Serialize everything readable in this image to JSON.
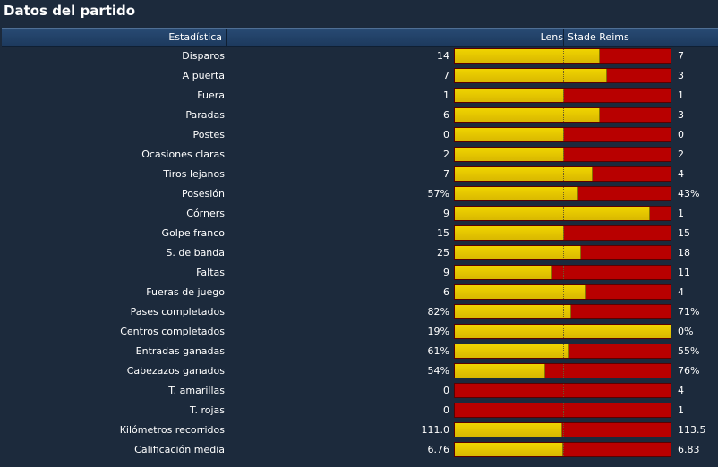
{
  "title": "Datos del partido",
  "header": {
    "stat": "Estadística",
    "home": "Lens",
    "away": "Stade Reims"
  },
  "colors": {
    "home": "#e6c800",
    "away": "#b80000",
    "background": "#1c2a3c"
  },
  "rows": [
    {
      "label": "Disparos",
      "home": "14",
      "away": "7",
      "home_share": 0.667
    },
    {
      "label": "A puerta",
      "home": "7",
      "away": "3",
      "home_share": 0.7
    },
    {
      "label": "Fuera",
      "home": "1",
      "away": "1",
      "home_share": 0.5
    },
    {
      "label": "Paradas",
      "home": "6",
      "away": "3",
      "home_share": 0.667
    },
    {
      "label": "Postes",
      "home": "0",
      "away": "0",
      "home_share": 0.5
    },
    {
      "label": "Ocasiones claras",
      "home": "2",
      "away": "2",
      "home_share": 0.5
    },
    {
      "label": "Tiros lejanos",
      "home": "7",
      "away": "4",
      "home_share": 0.636
    },
    {
      "label": "Posesión",
      "home": "57%",
      "away": "43%",
      "home_share": 0.57
    },
    {
      "label": "Córners",
      "home": "9",
      "away": "1",
      "home_share": 0.9
    },
    {
      "label": "Golpe franco",
      "home": "15",
      "away": "15",
      "home_share": 0.5
    },
    {
      "label": "S. de banda",
      "home": "25",
      "away": "18",
      "home_share": 0.581
    },
    {
      "label": "Faltas",
      "home": "9",
      "away": "11",
      "home_share": 0.45
    },
    {
      "label": "Fueras de juego",
      "home": "6",
      "away": "4",
      "home_share": 0.6
    },
    {
      "label": "Pases completados",
      "home": "82%",
      "away": "71%",
      "home_share": 0.536
    },
    {
      "label": "Centros completados",
      "home": "19%",
      "away": "0%",
      "home_share": 1.0
    },
    {
      "label": "Entradas ganadas",
      "home": "61%",
      "away": "55%",
      "home_share": 0.526
    },
    {
      "label": "Cabezazos ganados",
      "home": "54%",
      "away": "76%",
      "home_share": 0.415
    },
    {
      "label": "T. amarillas",
      "home": "0",
      "away": "4",
      "home_share": 0.0
    },
    {
      "label": "T. rojas",
      "home": "0",
      "away": "1",
      "home_share": 0.0
    },
    {
      "label": "Kilómetros recorridos",
      "home": "111.0",
      "away": "113.5",
      "home_share": 0.494
    },
    {
      "label": "Calificación media",
      "home": "6.76",
      "away": "6.83",
      "home_share": 0.497
    }
  ]
}
